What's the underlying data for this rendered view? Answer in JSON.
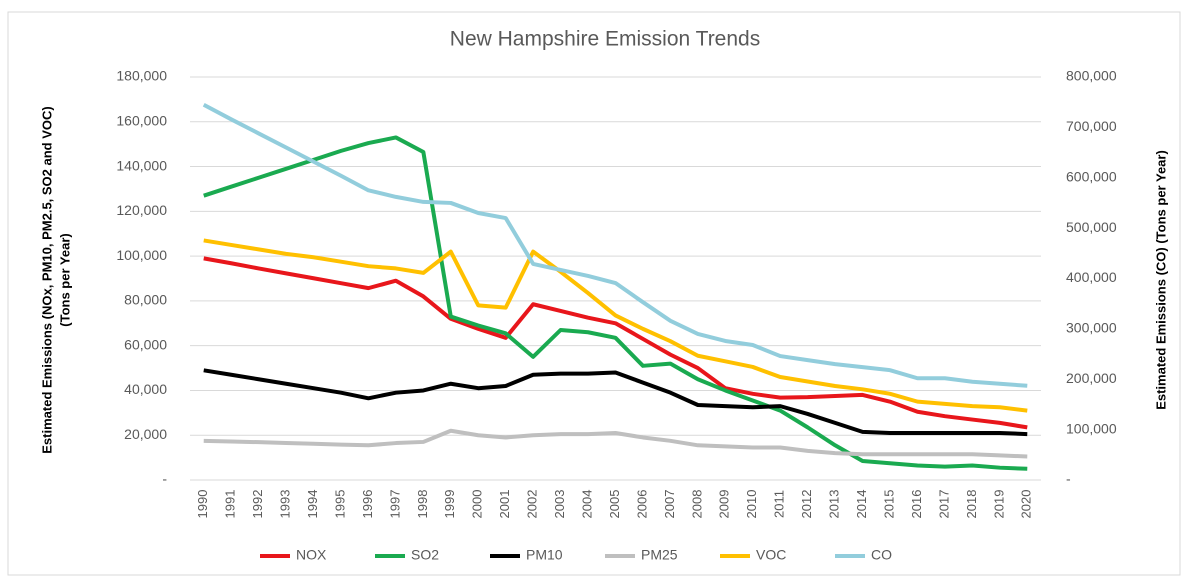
{
  "chart_data": {
    "type": "line",
    "title": "New Hampshire Emission Trends",
    "ylabel": [
      "Estimated Emissions (NOx, PM10, PM2.5, SO2 and VOC)",
      "(Tons per Year)"
    ],
    "y2label": "Estimated Emissions (CO) (Tons per Year)",
    "categories": [
      "1990",
      "1991",
      "1992",
      "1993",
      "1994",
      "1995",
      "1996",
      "1997",
      "1998",
      "1999",
      "2000",
      "2001",
      "2002",
      "2003",
      "2004",
      "2005",
      "2006",
      "2007",
      "2008",
      "2009",
      "2010",
      "2011",
      "2012",
      "2013",
      "2014",
      "2015",
      "2016",
      "2017",
      "2018",
      "2019",
      "2020"
    ],
    "ylim": [
      0,
      180000
    ],
    "yticks": [
      {
        "value": 0,
        "label": "-"
      },
      {
        "value": 20000,
        "label": "20,000"
      },
      {
        "value": 40000,
        "label": "40,000"
      },
      {
        "value": 60000,
        "label": "60,000"
      },
      {
        "value": 80000,
        "label": "80,000"
      },
      {
        "value": 100000,
        "label": "100,000"
      },
      {
        "value": 120000,
        "label": "120,000"
      },
      {
        "value": 140000,
        "label": "140,000"
      },
      {
        "value": 160000,
        "label": "160,000"
      },
      {
        "value": 180000,
        "label": "180,000"
      }
    ],
    "y2lim": [
      0,
      800000
    ],
    "y2ticks": [
      {
        "value": 0,
        "label": "-"
      },
      {
        "value": 100000,
        "label": "100,000"
      },
      {
        "value": 200000,
        "label": "200,000"
      },
      {
        "value": 300000,
        "label": "300,000"
      },
      {
        "value": 400000,
        "label": "400,000"
      },
      {
        "value": 500000,
        "label": "500,000"
      },
      {
        "value": 600000,
        "label": "600,000"
      },
      {
        "value": 700000,
        "label": "700,000"
      },
      {
        "value": 800000,
        "label": "800,000"
      }
    ],
    "grid": true,
    "legend": "bottom",
    "series": [
      {
        "name": "NOX",
        "color": "#e8161b",
        "values": [
          99000,
          96800,
          94500,
          92300,
          90100,
          87900,
          85700,
          89000,
          82000,
          72000,
          67500,
          63500,
          78500,
          75500,
          72500,
          70000,
          63000,
          56000,
          50000,
          41000,
          38500,
          36800,
          37000,
          37500,
          38000,
          35000,
          30500,
          28500,
          27000,
          25500,
          23500
        ]
      },
      {
        "name": "SO2",
        "color": "#1aaa50",
        "values": [
          127000,
          131000,
          135000,
          139000,
          143000,
          147000,
          150500,
          153000,
          146500,
          73000,
          69000,
          65500,
          55000,
          67000,
          66000,
          63500,
          51000,
          52000,
          45000,
          40000,
          35500,
          31000,
          23500,
          15500,
          8500,
          7500,
          6500,
          6000,
          6500,
          5500,
          5000
        ]
      },
      {
        "name": "PM10",
        "color": "#000000",
        "values": [
          49000,
          47000,
          45000,
          43000,
          41000,
          39000,
          36500,
          39000,
          40000,
          43000,
          41000,
          42000,
          47000,
          47500,
          47500,
          48000,
          43500,
          39000,
          33500,
          33000,
          32500,
          33000,
          29500,
          25500,
          21500,
          21000,
          21000,
          21000,
          21000,
          21000,
          20500
        ]
      },
      {
        "name": "PM25",
        "color": "#bfbfbf",
        "values": [
          17500,
          17200,
          16900,
          16500,
          16200,
          15800,
          15500,
          16500,
          17000,
          22000,
          20000,
          19000,
          20000,
          20500,
          20500,
          21000,
          19000,
          17500,
          15500,
          15000,
          14500,
          14500,
          13000,
          12000,
          11500,
          11500,
          11500,
          11500,
          11500,
          11000,
          10500
        ]
      },
      {
        "name": "VOC",
        "color": "#ffc000",
        "values": [
          107000,
          105000,
          103000,
          101000,
          99500,
          97500,
          95500,
          94500,
          92500,
          102000,
          78000,
          77000,
          102000,
          93000,
          83500,
          73500,
          67500,
          62000,
          55500,
          53000,
          50500,
          46000,
          44000,
          42000,
          40500,
          38500,
          35000,
          34000,
          33000,
          32500,
          31000
        ]
      },
      {
        "name": "CO",
        "color": "#92cddc",
        "axis": "y2",
        "values": [
          745000,
          716000,
          688000,
          660000,
          632000,
          604000,
          575000,
          562000,
          552000,
          550000,
          530000,
          520000,
          429000,
          417000,
          405000,
          391000,
          353000,
          316000,
          290000,
          276000,
          268000,
          246000,
          238000,
          230000,
          224000,
          218000,
          202000,
          202000,
          195000,
          191000,
          187000
        ]
      }
    ]
  }
}
